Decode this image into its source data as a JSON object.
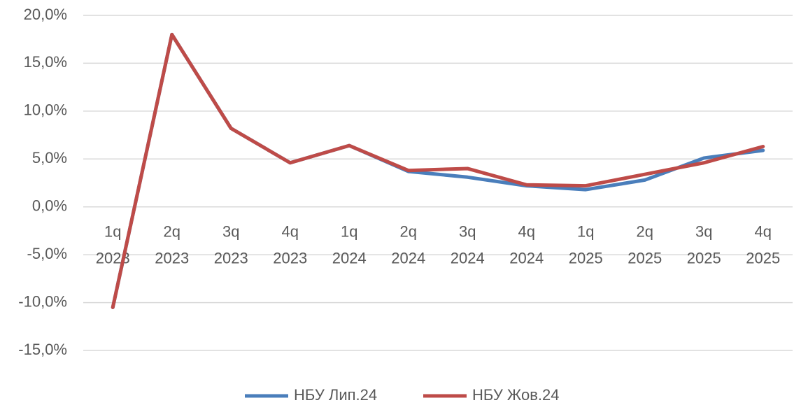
{
  "chart_data": {
    "type": "line",
    "categories": [
      [
        "1q",
        "2023"
      ],
      [
        "2q",
        "2023"
      ],
      [
        "3q",
        "2023"
      ],
      [
        "4q",
        "2023"
      ],
      [
        "1q",
        "2024"
      ],
      [
        "2q",
        "2024"
      ],
      [
        "3q",
        "2024"
      ],
      [
        "4q",
        "2024"
      ],
      [
        "1q",
        "2025"
      ],
      [
        "2q",
        "2025"
      ],
      [
        "3q",
        "2025"
      ],
      [
        "4q",
        "2025"
      ]
    ],
    "series": [
      {
        "name": "НБУ Лип.24",
        "color": "#4a7ebb",
        "values": [
          -10.5,
          18.0,
          8.2,
          4.6,
          6.4,
          3.7,
          3.1,
          2.2,
          1.8,
          2.8,
          5.1,
          5.9
        ]
      },
      {
        "name": "НБУ Жов.24",
        "color": "#be4b48",
        "values": [
          -10.5,
          18.0,
          8.2,
          4.6,
          6.4,
          3.8,
          4.0,
          2.3,
          2.2,
          3.4,
          4.6,
          6.3
        ]
      }
    ],
    "ylim": [
      -15,
      20
    ],
    "yticks": [
      {
        "value": -15,
        "label": "-15,0%"
      },
      {
        "value": -10,
        "label": "-10,0%"
      },
      {
        "value": -5,
        "label": "-5,0%"
      },
      {
        "value": 0,
        "label": "0,0%"
      },
      {
        "value": 5,
        "label": "5,0%"
      },
      {
        "value": 10,
        "label": "10,0%"
      },
      {
        "value": 15,
        "label": "15,0%"
      },
      {
        "value": 20,
        "label": "20,0%"
      }
    ],
    "grid": true,
    "legend": "bottom"
  }
}
